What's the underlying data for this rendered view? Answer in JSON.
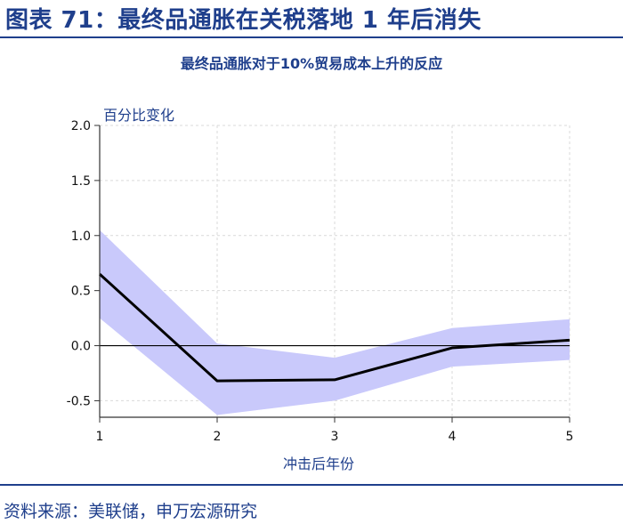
{
  "figure_title": "图表 71：最终品通胀在关税落地 1 年后消失",
  "source_text": "资料来源：美联储，申万宏源研究",
  "colors": {
    "brand": "#1f3f8c",
    "band": "#c9c9fb",
    "line": "#000000",
    "grid": "#d9d9d9"
  },
  "chart_data": {
    "type": "line",
    "title": "最终品通胀对于10%贸易成本上升的反应",
    "xlabel": "冲击后年份",
    "ylabel": "百分比变化",
    "x": [
      1,
      2,
      3,
      4,
      5
    ],
    "series": [
      {
        "values": [
          0.65,
          -0.32,
          -0.31,
          -0.02,
          0.05
        ]
      }
    ],
    "confidence_band": {
      "lower": [
        0.25,
        -0.63,
        -0.5,
        -0.19,
        -0.13
      ],
      "upper": [
        1.05,
        0.02,
        -0.11,
        0.16,
        0.24
      ]
    },
    "xlim": [
      1,
      5
    ],
    "ylim": [
      -0.65,
      2.0
    ],
    "xticks": [
      "1",
      "2",
      "3",
      "4",
      "5"
    ],
    "yticks": [
      "2.0",
      "1.5",
      "1.0",
      "0.5",
      "0.0",
      "-0.5"
    ],
    "grid": true,
    "zero_line": true
  }
}
